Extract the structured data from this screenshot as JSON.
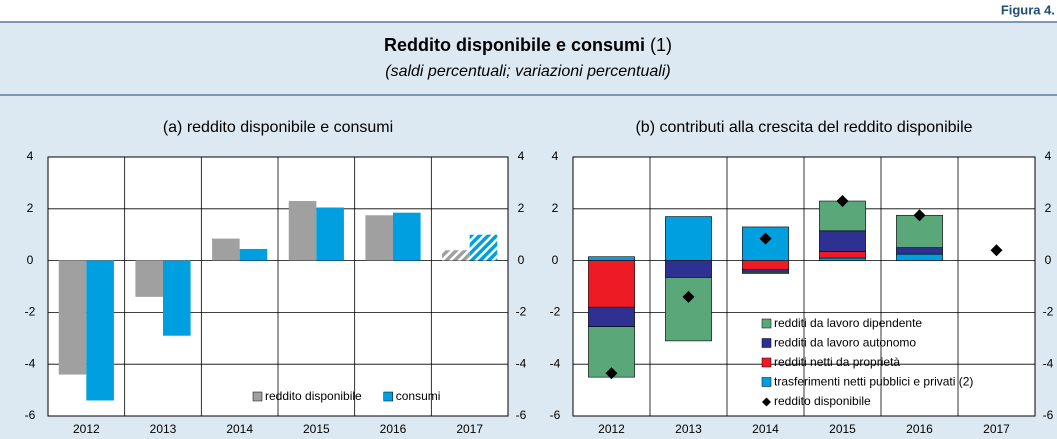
{
  "header": {
    "figure": "Figura 4.",
    "title": "Reddito disponibile e consumi",
    "note": "(1)",
    "subtitle": "(saldi percentuali; variazioni percentuali)"
  },
  "chart_data": [
    {
      "type": "bar",
      "title": "(a) reddito disponibile e consumi",
      "categories": [
        "2012",
        "2013",
        "2014",
        "2015",
        "2016",
        "2017"
      ],
      "series": [
        {
          "name": "reddito disponibile",
          "color": "#a0a0a0",
          "values": [
            -4.4,
            -1.4,
            0.85,
            2.3,
            1.75,
            0.4
          ]
        },
        {
          "name": "consumi",
          "color": "#00a0e0",
          "values": [
            -5.4,
            -2.9,
            0.45,
            2.05,
            1.85,
            1.0
          ]
        }
      ],
      "hatched": [
        false,
        false,
        false,
        false,
        false,
        true
      ],
      "ylim": [
        -6,
        4
      ],
      "yticks": [
        -6,
        -4,
        -2,
        0,
        2,
        4
      ],
      "y2lim": [
        -6,
        4
      ],
      "y2ticks": [
        -6,
        -4,
        -2,
        0,
        2,
        4
      ],
      "grid": true,
      "legend": "lower center"
    },
    {
      "type": "bar",
      "stacked": true,
      "title": "(b) contributi alla crescita del reddito disponibile",
      "categories": [
        "2012",
        "2013",
        "2014",
        "2015",
        "2016",
        "2017"
      ],
      "series": [
        {
          "name": "redditi da lavoro dipendente",
          "color": "#5aa87a",
          "values": [
            -1.95,
            -2.45,
            -0.05,
            1.15,
            1.25,
            null
          ]
        },
        {
          "name": "redditi da lavoro autonomo",
          "color": "#2e3192",
          "values": [
            -0.75,
            -0.65,
            -0.1,
            0.8,
            0.25,
            null
          ]
        },
        {
          "name": "redditi netti da proprietà",
          "color": "#ed1c24",
          "values": [
            -1.8,
            0,
            -0.35,
            0.25,
            0,
            null
          ]
        },
        {
          "name": "trasferimenti netti pubblici e privati (2)",
          "color": "#00a0e0",
          "values": [
            0.15,
            1.7,
            1.3,
            0.1,
            0.25,
            null
          ]
        },
        {
          "name": "reddito disponibile",
          "color": "#000000",
          "marker": "diamond",
          "values": [
            -4.35,
            -1.4,
            0.85,
            2.3,
            1.75,
            0.4
          ]
        }
      ],
      "ylim": [
        -6,
        4
      ],
      "yticks": [
        -6,
        -4,
        -2,
        0,
        2,
        4
      ],
      "y2lim": [
        -6,
        4
      ],
      "y2ticks": [
        -6,
        -4,
        -2,
        0,
        2,
        4
      ],
      "grid": true,
      "legend": "lower right"
    }
  ]
}
